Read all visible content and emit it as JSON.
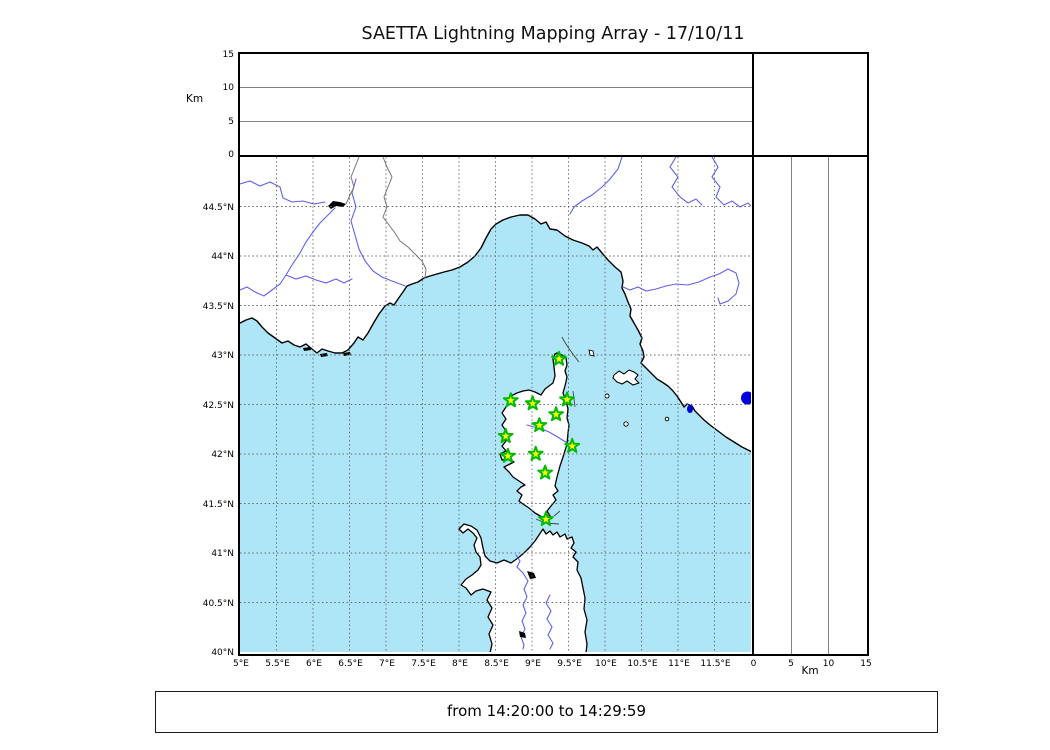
{
  "title": "SAETTA Lightning Mapping Array - 17/10/11",
  "footer": {
    "time_range": "from 14:20:00 to 14:29:59"
  },
  "altitude_axis": {
    "label": "Km",
    "ticks": [
      "15",
      "10",
      "5",
      "0"
    ],
    "range_km": [
      0,
      15
    ],
    "gridlines_km": [
      5,
      10
    ]
  },
  "map_axes": {
    "lat_ticks": [
      "44.5°N",
      "44°N",
      "43.5°N",
      "43°N",
      "42.5°N",
      "42°N",
      "41.5°N",
      "41°N",
      "40.5°N",
      "40°N"
    ],
    "lon_ticks": [
      "5°E",
      "5.5°E",
      "6°E",
      "6.5°E",
      "7°E",
      "7.5°E",
      "8°E",
      "8.5°E",
      "9°E",
      "9.5°E",
      "10°E",
      "10.5°E",
      "11°E",
      "11.5°E"
    ],
    "lon_range_deg": [
      5,
      12
    ],
    "lat_range_deg": [
      40,
      45
    ],
    "grid_step_deg": 0.5
  },
  "right_axis": {
    "label": "Km",
    "ticks": [
      "0",
      "5",
      "10",
      "15"
    ]
  },
  "stations": [
    {
      "lon": 9.37,
      "lat": 42.96
    },
    {
      "lon": 8.71,
      "lat": 42.54
    },
    {
      "lon": 9.01,
      "lat": 42.51
    },
    {
      "lon": 9.48,
      "lat": 42.55
    },
    {
      "lon": 9.33,
      "lat": 42.4
    },
    {
      "lon": 9.1,
      "lat": 42.29
    },
    {
      "lon": 8.64,
      "lat": 42.18
    },
    {
      "lon": 9.55,
      "lat": 42.08
    },
    {
      "lon": 8.67,
      "lat": 41.98
    },
    {
      "lon": 9.05,
      "lat": 42.0
    },
    {
      "lon": 9.18,
      "lat": 41.81
    },
    {
      "lon": 9.19,
      "lat": 41.34
    }
  ],
  "colors": {
    "sea": "#aee6f7",
    "land": "#ffffff",
    "coast": "#000000",
    "river": "#6060e8",
    "lake_blue": "#0000dd",
    "lake_black": "#000000",
    "border_line": "#777777",
    "station_fill": "#ffff00",
    "station_edge": "#00bb00",
    "grid_dash": "#666666"
  }
}
